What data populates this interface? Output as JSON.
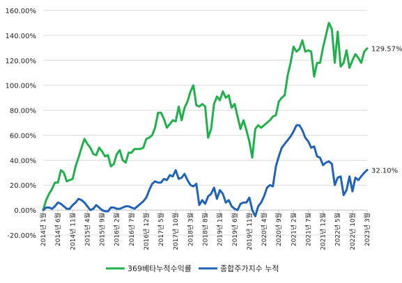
{
  "chart_data": {
    "type": "line",
    "title": "",
    "xlabel": "",
    "ylabel": "",
    "ylim": [
      -20,
      160
    ],
    "y_ticks": [
      "-20.00%",
      "0.00%",
      "20.00%",
      "40.00%",
      "60.00%",
      "80.00%",
      "100.00%",
      "120.00%",
      "140.00%",
      "160.00%"
    ],
    "y_tick_values": [
      -20,
      0,
      20,
      40,
      60,
      80,
      100,
      120,
      140,
      160
    ],
    "x_tick_labels": [
      "2014년 1월",
      "2014년 6월",
      "2014년 11월",
      "2015년 4월",
      "2015년 9월",
      "2016년 2월",
      "2016년 7월",
      "2016년 12월",
      "2017년 5월",
      "2017년 10월",
      "2018년 3월",
      "2018년 8월",
      "2019년 1월",
      "2019년 6월",
      "2019년 11월",
      "2020년 4월",
      "2020년 9월",
      "2021년 2월",
      "2021년 7월",
      "2021년 12월",
      "2022년 5월",
      "2022년 10월",
      "2023년 3월"
    ],
    "x_tick_index": [
      0,
      5,
      10,
      15,
      20,
      25,
      30,
      35,
      40,
      45,
      50,
      55,
      60,
      65,
      70,
      75,
      80,
      85,
      90,
      95,
      100,
      105,
      110
    ],
    "grid": "horizontal",
    "legend": "bottom",
    "series": [
      {
        "name": "369베타누적수익률",
        "color": "#20b04b",
        "end_label": "129.57%",
        "values": [
          0,
          8,
          13,
          17,
          22,
          22,
          32,
          30,
          23,
          24,
          25,
          35,
          42,
          50,
          57,
          53,
          50,
          45,
          44,
          50,
          47,
          43,
          44,
          35,
          37,
          45,
          48,
          40,
          38,
          46,
          46,
          49,
          49,
          49,
          50,
          57,
          58,
          60,
          66,
          78,
          78,
          73,
          66,
          69,
          72,
          71,
          83,
          72,
          82,
          87,
          95,
          100,
          84,
          83,
          85,
          83,
          58,
          65,
          85,
          91,
          88,
          95,
          90,
          92,
          82,
          85,
          75,
          65,
          72,
          64,
          55,
          42,
          65,
          68,
          66,
          68,
          70,
          72,
          75,
          76,
          87,
          90,
          92,
          108,
          118,
          131,
          127,
          129,
          136,
          127,
          128,
          127,
          107,
          118,
          118,
          130,
          140,
          150,
          145,
          118,
          143,
          115,
          118,
          128,
          114,
          120,
          125,
          122,
          118,
          127,
          129.57
        ]
      },
      {
        "name": "종합주가지수 누적",
        "color": "#1f63b6",
        "end_label": "32.10%",
        "values": [
          0,
          2,
          2,
          1,
          3,
          6,
          5,
          3,
          1,
          1,
          4,
          6,
          9,
          8,
          6,
          3,
          0,
          1,
          4,
          2,
          0,
          -1,
          -1,
          2,
          2,
          1,
          1,
          2,
          3,
          3,
          2,
          1,
          3,
          5,
          7,
          10,
          16,
          21,
          23,
          22,
          22,
          25,
          24,
          28,
          27,
          32,
          25,
          26,
          29,
          24,
          20,
          19,
          21,
          4,
          8,
          5,
          11,
          13,
          18,
          9,
          16,
          13,
          6,
          8,
          3,
          1,
          0,
          5,
          6,
          6,
          10,
          0,
          -5,
          3,
          6,
          11,
          18,
          20,
          19,
          35,
          43,
          50,
          53,
          56,
          59,
          63,
          68,
          68,
          64,
          58,
          55,
          50,
          51,
          43,
          42,
          36,
          38,
          39,
          37,
          20,
          26,
          27,
          12,
          16,
          27,
          15,
          26,
          24,
          27,
          30,
          32.1
        ]
      }
    ]
  }
}
